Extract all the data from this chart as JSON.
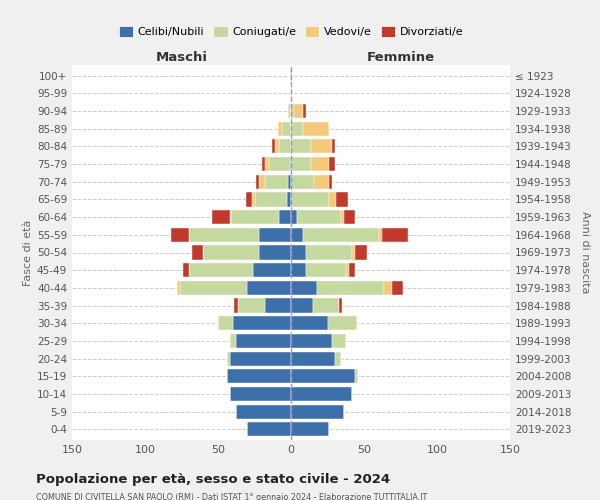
{
  "age_groups": [
    "0-4",
    "5-9",
    "10-14",
    "15-19",
    "20-24",
    "25-29",
    "30-34",
    "35-39",
    "40-44",
    "45-49",
    "50-54",
    "55-59",
    "60-64",
    "65-69",
    "70-74",
    "75-79",
    "80-84",
    "85-89",
    "90-94",
    "95-99",
    "100+"
  ],
  "birth_years": [
    "2019-2023",
    "2014-2018",
    "2009-2013",
    "2004-2008",
    "1999-2003",
    "1994-1998",
    "1989-1993",
    "1984-1988",
    "1979-1983",
    "1974-1978",
    "1969-1973",
    "1964-1968",
    "1959-1963",
    "1954-1958",
    "1949-1953",
    "1944-1948",
    "1939-1943",
    "1934-1938",
    "1929-1933",
    "1924-1928",
    "≤ 1923"
  ],
  "maschi": {
    "celibi": [
      30,
      38,
      42,
      44,
      42,
      38,
      40,
      18,
      30,
      26,
      22,
      22,
      8,
      3,
      2,
      1,
      0,
      0,
      0,
      0,
      1
    ],
    "coniugati": [
      0,
      0,
      0,
      0,
      2,
      4,
      10,
      18,
      46,
      44,
      38,
      48,
      33,
      22,
      16,
      14,
      8,
      6,
      1,
      0,
      0
    ],
    "vedovi": [
      0,
      0,
      0,
      0,
      0,
      0,
      0,
      0,
      2,
      0,
      0,
      0,
      1,
      2,
      4,
      3,
      3,
      3,
      1,
      0,
      0
    ],
    "divorziati": [
      0,
      0,
      0,
      0,
      0,
      0,
      0,
      3,
      0,
      4,
      8,
      12,
      12,
      4,
      2,
      2,
      2,
      0,
      0,
      0,
      0
    ]
  },
  "femmine": {
    "nubili": [
      26,
      36,
      42,
      44,
      30,
      28,
      25,
      15,
      18,
      10,
      10,
      8,
      4,
      0,
      0,
      0,
      0,
      0,
      0,
      0,
      0
    ],
    "coniugate": [
      0,
      0,
      0,
      2,
      4,
      10,
      20,
      18,
      46,
      28,
      32,
      52,
      30,
      26,
      16,
      14,
      14,
      8,
      2,
      1,
      0
    ],
    "vedove": [
      0,
      0,
      0,
      0,
      0,
      0,
      0,
      0,
      5,
      2,
      2,
      2,
      2,
      5,
      10,
      12,
      14,
      18,
      6,
      0,
      1
    ],
    "divorziate": [
      0,
      0,
      0,
      0,
      0,
      0,
      0,
      2,
      8,
      4,
      8,
      18,
      8,
      8,
      2,
      4,
      2,
      0,
      2,
      0,
      0
    ]
  },
  "colors": {
    "celibi": "#3d6fa8",
    "coniugati": "#c5d8a0",
    "vedovi": "#f5c97a",
    "divorziati": "#c0392b"
  },
  "xlim": 150,
  "title_main": "Popolazione per età, sesso e stato civile - 2024",
  "title_sub": "COMUNE DI CIVITELLA SAN PAOLO (RM) - Dati ISTAT 1° gennaio 2024 - Elaborazione TUTTITALIA.IT",
  "xlabel_left": "Maschi",
  "xlabel_right": "Femmine",
  "ylabel_left": "Fasce di età",
  "ylabel_right": "Anni di nascita",
  "legend_labels": [
    "Celibi/Nubili",
    "Coniugati/e",
    "Vedovi/e",
    "Divorziati/e"
  ],
  "bg_color": "#f0f0f0",
  "plot_bg_color": "#ffffff"
}
